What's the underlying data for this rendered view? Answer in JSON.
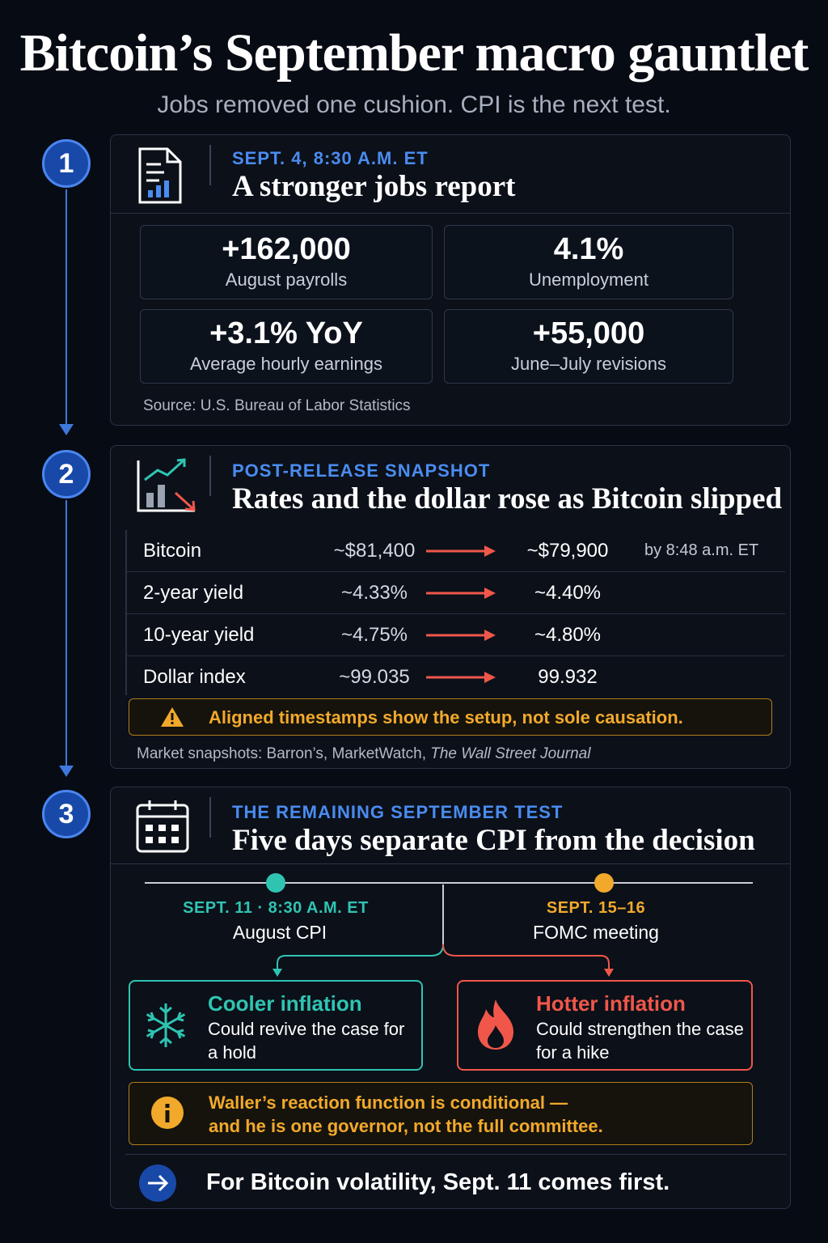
{
  "title": "Bitcoin’s September macro gauntlet",
  "subtitle": "Jobs removed one cushion. CPI is the next test.",
  "colors": {
    "accent_blue": "#4a8cf0",
    "down_red": "#f0574a",
    "teal": "#2fc4b2",
    "amber": "#f2a92b"
  },
  "steps": [
    {
      "number": "1",
      "icon": "report-chart-icon",
      "kicker": "SEPT. 4, 8:30 A.M. ET",
      "headline": "A stronger jobs report",
      "stats": [
        {
          "value": "+162,000",
          "label": "August payrolls"
        },
        {
          "value": "4.1%",
          "label": "Unemployment"
        },
        {
          "value": "+3.1% YoY",
          "label": "Average hourly earnings"
        },
        {
          "value": "+55,000",
          "label": "June–July revisions"
        }
      ],
      "source": "Source: U.S. Bureau of Labor Statistics"
    },
    {
      "number": "2",
      "icon": "market-up-down-icon",
      "kicker": "POST-RELEASE SNAPSHOT",
      "headline": "Rates and the dollar rose as Bitcoin slipped",
      "rows": [
        {
          "label": "Bitcoin",
          "from": "~$81,400",
          "to": "~$79,900",
          "note": "by 8:48 a.m. ET"
        },
        {
          "label": "2-year yield",
          "from": "~4.33%",
          "to": "~4.40%",
          "note": ""
        },
        {
          "label": "10-year yield",
          "from": "~4.75%",
          "to": "~4.80%",
          "note": ""
        },
        {
          "label": "Dollar index",
          "from": "~99.035",
          "to": "99.932",
          "note": ""
        }
      ],
      "warning": "Aligned timestamps show the setup, not sole causation.",
      "source_prefix": "Market snapshots: Barron’s, MarketWatch, ",
      "source_italic": "The Wall Street Journal"
    },
    {
      "number": "3",
      "icon": "calendar-icon",
      "kicker": "THE REMAINING SEPTEMBER TEST",
      "headline": "Five days separate CPI from the decision",
      "timeline": [
        {
          "date": "SEPT. 11 · 8:30 A.M. ET",
          "event": "August CPI"
        },
        {
          "date": "SEPT. 15–16",
          "event": "FOMC meeting"
        }
      ],
      "scenarios": [
        {
          "icon": "snowflake-icon",
          "title": "Cooler inflation",
          "body": "Could revive the case for a hold"
        },
        {
          "icon": "flame-icon",
          "title": "Hotter inflation",
          "body": "Could strengthen the case for a hike"
        }
      ],
      "note_line1": "Waller’s reaction function is conditional —",
      "note_line2": "and he is one governor, not the full committee.",
      "bottom_line": "For Bitcoin volatility, Sept. 11 comes first."
    }
  ]
}
